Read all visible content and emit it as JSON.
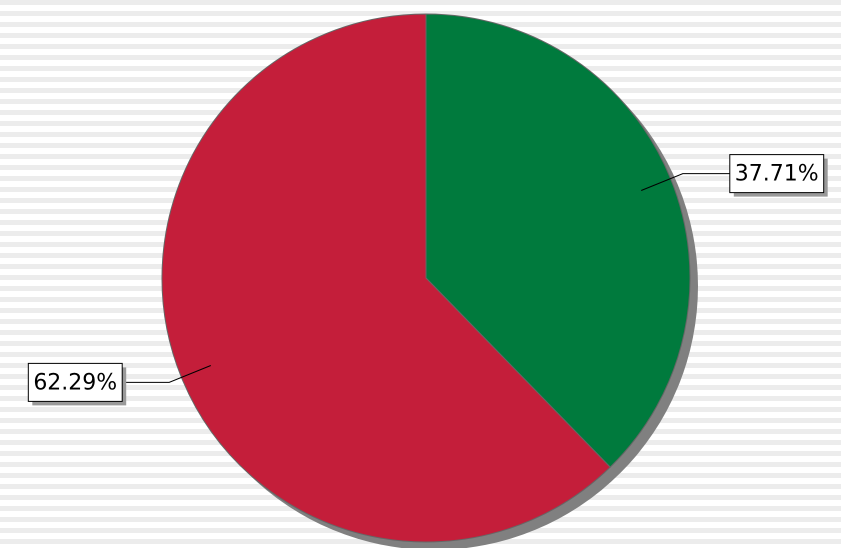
{
  "chart_data": {
    "type": "pie",
    "values": [
      37.71,
      62.29
    ],
    "value_labels": [
      "37.71%",
      "62.29%"
    ],
    "colors": [
      "#007a3d",
      "#c41e3a"
    ]
  }
}
